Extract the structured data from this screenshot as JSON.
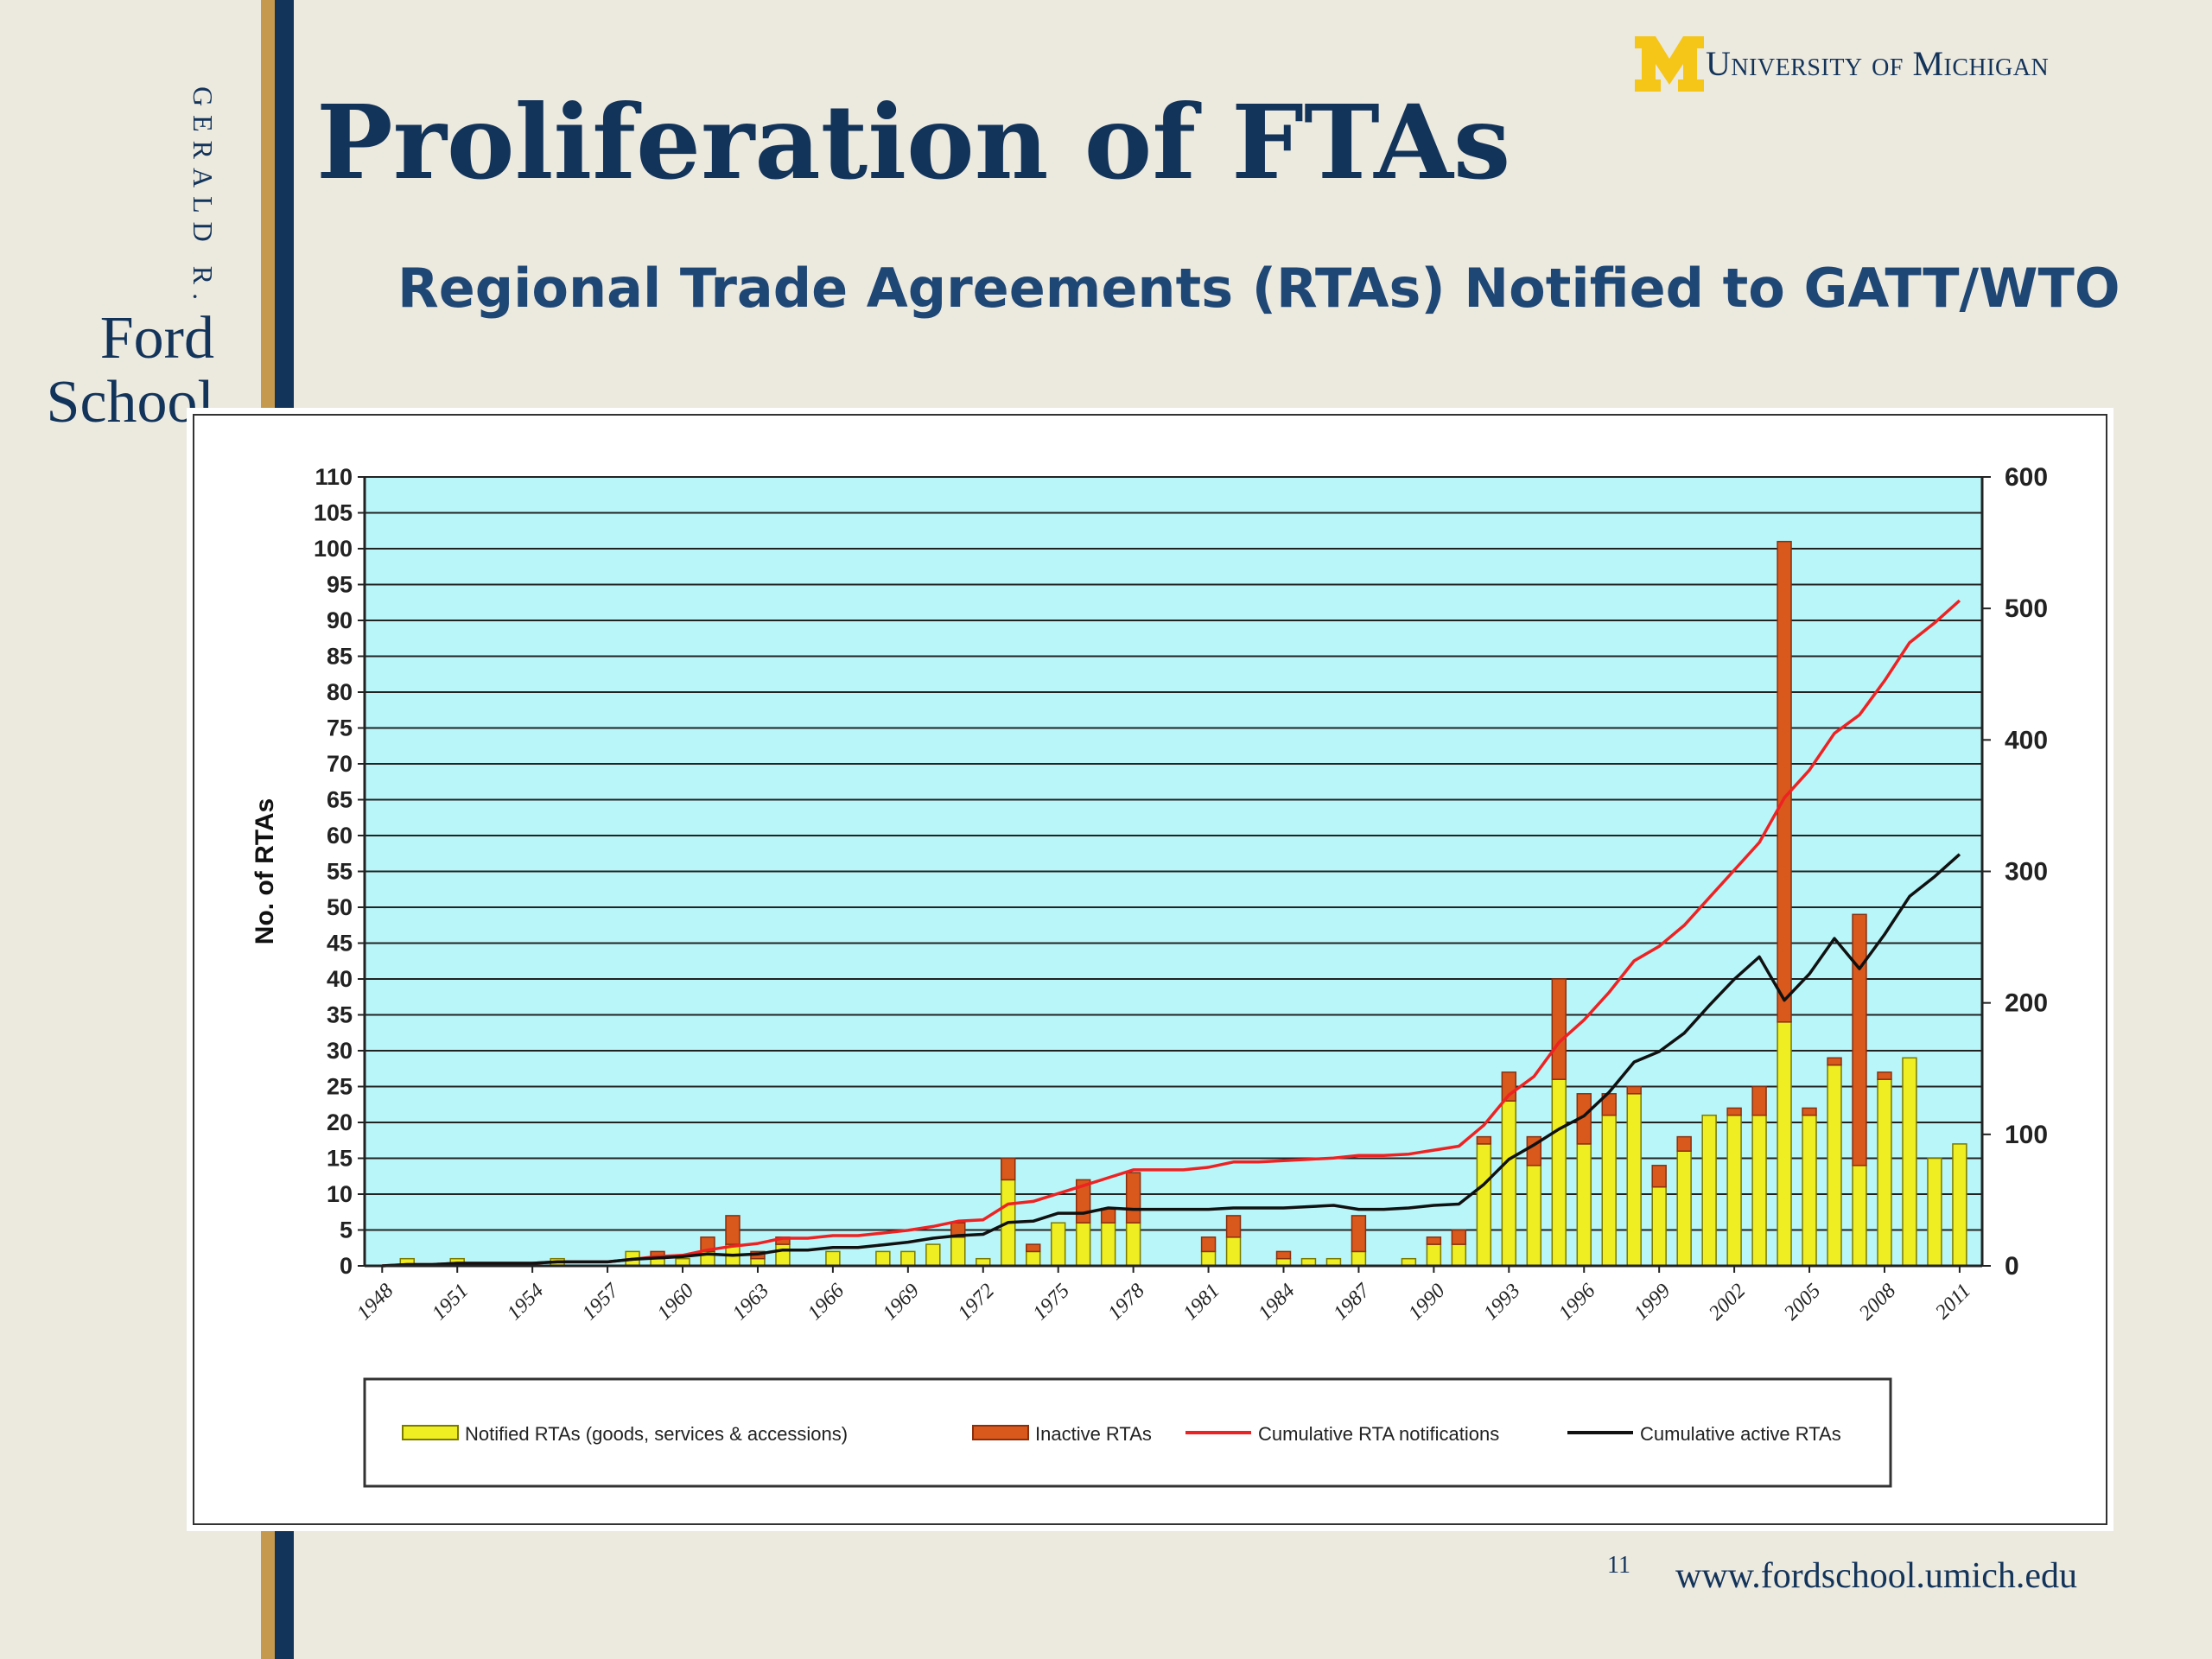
{
  "slide": {
    "title": "Proliferation of FTAs",
    "subtitle": "Regional Trade Agreements (RTAs) Notified to GATT/WTO",
    "side_name": "GERALD R.",
    "school_line1": "Ford",
    "school_line2": "School",
    "university": "University of Michigan",
    "page_number": "11",
    "url": "www.fordschool.umich.edu"
  },
  "colors": {
    "navy": "#13345a",
    "gold": "#c59a4e",
    "maize": "#f5c518",
    "plot_bg": "#b9f6f9",
    "notified": "#eeee22",
    "inactive": "#d9581c",
    "cum_notified": "#ee2222",
    "cum_active": "#111111"
  },
  "chart_data": {
    "type": "bar",
    "title": "Regional Trade Agreements (RTAs) Notified to GATT/WTO",
    "ylabel": "No. of RTAs",
    "ylim": [
      0,
      110
    ],
    "y2lim": [
      0,
      600
    ],
    "yticks": [
      0,
      5,
      10,
      15,
      20,
      25,
      30,
      35,
      40,
      45,
      50,
      55,
      60,
      65,
      70,
      75,
      80,
      85,
      90,
      95,
      100,
      105,
      110
    ],
    "y2ticks": [
      0,
      100,
      200,
      300,
      400,
      500,
      600
    ],
    "xtick_labels": [
      "1948",
      "1951",
      "1954",
      "1957",
      "1960",
      "1963",
      "1966",
      "1969",
      "1972",
      "1975",
      "1978",
      "1981",
      "1984",
      "1987",
      "1990",
      "1993",
      "1996",
      "1999",
      "2002",
      "2005",
      "2008",
      "2011"
    ],
    "years": [
      1948,
      1949,
      1950,
      1951,
      1952,
      1953,
      1954,
      1955,
      1956,
      1957,
      1958,
      1959,
      1960,
      1961,
      1962,
      1963,
      1964,
      1965,
      1966,
      1967,
      1968,
      1969,
      1970,
      1971,
      1972,
      1973,
      1974,
      1975,
      1976,
      1977,
      1978,
      1979,
      1980,
      1981,
      1982,
      1983,
      1984,
      1985,
      1986,
      1987,
      1988,
      1989,
      1990,
      1991,
      1992,
      1993,
      1994,
      1995,
      1996,
      1997,
      1998,
      1999,
      2000,
      2001,
      2002,
      2003,
      2004,
      2005,
      2006,
      2007,
      2008,
      2009,
      2010,
      2011
    ],
    "series": [
      {
        "name": "Notified RTAs (goods, services & accessions)",
        "axis": "left",
        "kind": "bar",
        "values": [
          0,
          1,
          0,
          1,
          0,
          0,
          0,
          1,
          0,
          0,
          2,
          1,
          1,
          2,
          3,
          1,
          3,
          0,
          2,
          0,
          2,
          2,
          3,
          4,
          1,
          12,
          2,
          6,
          6,
          6,
          6,
          0,
          0,
          2,
          4,
          0,
          1,
          1,
          1,
          2,
          0,
          1,
          3,
          3,
          17,
          23,
          14,
          26,
          17,
          21,
          24,
          11,
          16,
          21,
          21,
          21,
          34,
          21,
          28,
          14,
          26,
          29,
          15,
          17
        ]
      },
      {
        "name": "Inactive RTAs",
        "axis": "left",
        "kind": "bar",
        "values": [
          0,
          0,
          0,
          0,
          0,
          0,
          0,
          0,
          0,
          0,
          0,
          1,
          0,
          2,
          4,
          1,
          1,
          0,
          0,
          0,
          0,
          0,
          0,
          2,
          0,
          3,
          1,
          0,
          6,
          2,
          7,
          0,
          0,
          2,
          3,
          0,
          1,
          0,
          0,
          5,
          0,
          0,
          1,
          2,
          1,
          4,
          4,
          14,
          7,
          3,
          1,
          3,
          2,
          0,
          1,
          4,
          67,
          1,
          1,
          35,
          1,
          0,
          0,
          0
        ]
      },
      {
        "name": "Cumulative RTA notifications",
        "axis": "right",
        "kind": "line",
        "values": [
          0,
          1,
          1,
          2,
          2,
          2,
          2,
          3,
          3,
          3,
          5,
          7,
          8,
          12,
          15,
          17,
          21,
          21,
          23,
          23,
          25,
          27,
          30,
          34,
          35,
          47,
          49,
          55,
          61,
          67,
          73,
          73,
          73,
          75,
          79,
          79,
          80,
          81,
          82,
          84,
          84,
          85,
          88,
          91,
          107,
          130,
          144,
          170,
          187,
          208,
          232,
          243,
          259,
          280,
          301,
          322,
          356,
          377,
          405,
          419,
          445,
          474,
          489,
          506
        ]
      },
      {
        "name": "Cumulative active RTAs",
        "axis": "right",
        "kind": "line",
        "values": [
          0,
          1,
          1,
          2,
          2,
          2,
          2,
          3,
          3,
          3,
          5,
          6,
          7,
          9,
          8,
          9,
          12,
          12,
          14,
          14,
          16,
          18,
          21,
          23,
          24,
          33,
          34,
          40,
          40,
          44,
          43,
          43,
          43,
          43,
          44,
          44,
          44,
          45,
          46,
          43,
          43,
          44,
          46,
          47,
          62,
          81,
          92,
          104,
          114,
          132,
          155,
          163,
          177,
          198,
          218,
          235,
          202,
          222,
          249,
          226,
          252,
          281,
          296,
          313
        ]
      }
    ],
    "legend_position": "bottom",
    "grid": true
  }
}
